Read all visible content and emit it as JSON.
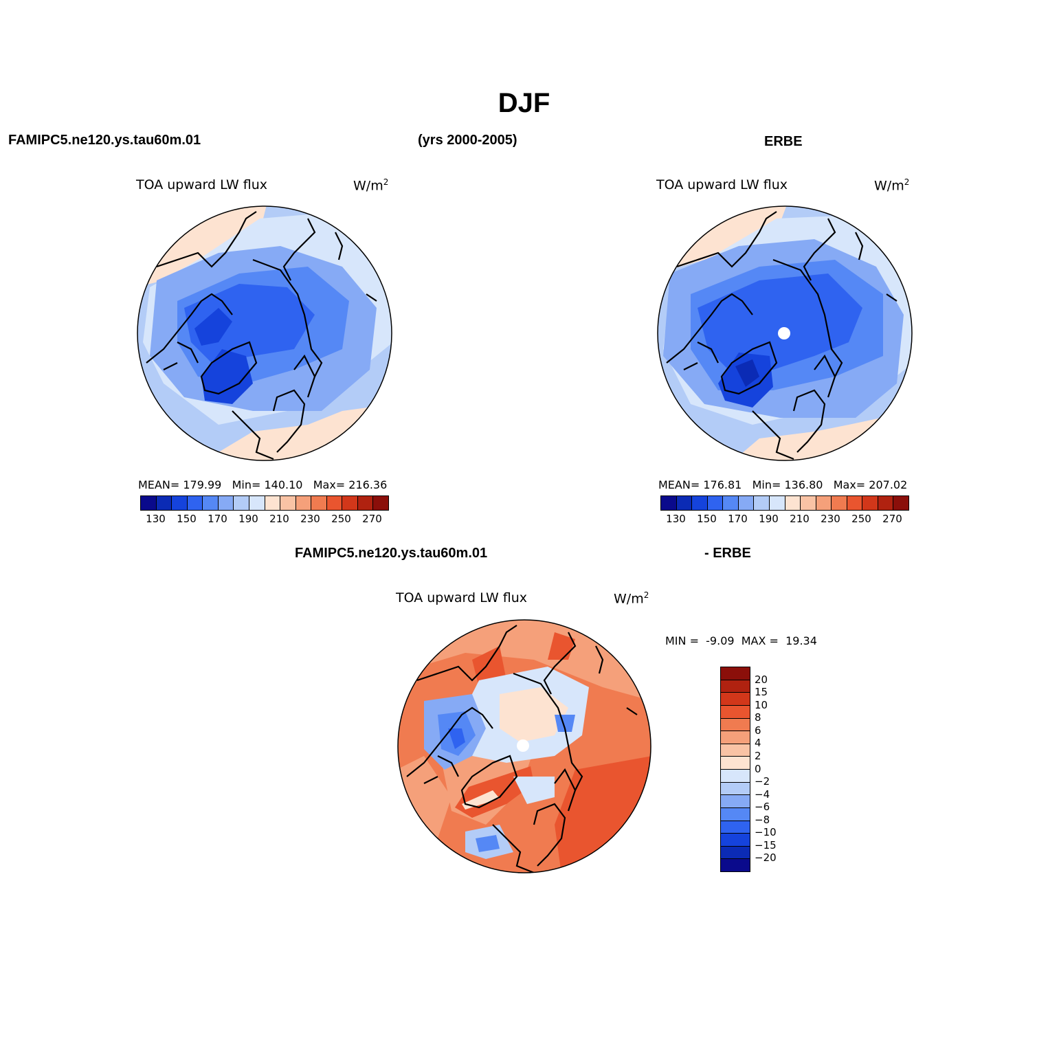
{
  "figure": {
    "season": "DJF",
    "model_name": "FAMIPC5.ne120.ys.tau60m.01",
    "years": "(yrs 2000-2005)",
    "obs_name": "ERBE",
    "diff_left": "FAMIPC5.ne120.ys.tau60m.01",
    "diff_right": "- ERBE"
  },
  "panels": {
    "model": {
      "variable": "TOA upward LW flux",
      "units": "W/m",
      "units_sup": "2",
      "mean_label": "MEAN=",
      "mean": "179.99",
      "min_label": "Min=",
      "min": "140.10",
      "max_label": "Max=",
      "max": "216.36"
    },
    "obs": {
      "variable": "TOA upward LW flux",
      "units": "W/m",
      "units_sup": "2",
      "mean_label": "MEAN=",
      "mean": "176.81",
      "min_label": "Min=",
      "min": "136.80",
      "max_label": "Max=",
      "max": "207.02"
    },
    "diff": {
      "variable": "TOA upward LW flux",
      "units": "W/m",
      "units_sup": "2",
      "min_label": "MIN =",
      "min": "-9.09",
      "max_label": "MAX =",
      "max": "19.34"
    }
  },
  "colorbars": {
    "abs_colors": [
      "#0a0a8c",
      "#0b2bb5",
      "#1543dc",
      "#2f63f0",
      "#5588f5",
      "#86aaf5",
      "#b3ccf7",
      "#d7e6fb",
      "#fde3d1",
      "#f9c3a5",
      "#f5a07a",
      "#f07b50",
      "#e9552f",
      "#d2371a",
      "#b02210",
      "#8b0f0a"
    ],
    "abs_ticks": [
      "130",
      "150",
      "170",
      "190",
      "210",
      "230",
      "250",
      "270"
    ],
    "diff_colors": [
      "#8b0f0a",
      "#b02210",
      "#d2371a",
      "#e9552f",
      "#f07b50",
      "#f5a07a",
      "#f9c3a5",
      "#fde3d1",
      "#d7e6fb",
      "#b3ccf7",
      "#86aaf5",
      "#5588f5",
      "#2f63f0",
      "#1543dc",
      "#0b2bb5",
      "#0a0a8c"
    ],
    "diff_ticks": [
      "20",
      "15",
      "10",
      "8",
      "6",
      "4",
      "2",
      "0",
      "−2",
      "−4",
      "−6",
      "−8",
      "−10",
      "−15",
      "−20"
    ]
  },
  "chart_data": {
    "type": "heatmap",
    "title": "DJF",
    "projection": "north polar stereographic",
    "panels": [
      {
        "name": "FAMIPC5.ne120.ys.tau60m.01",
        "variable": "TOA upward LW flux",
        "units": "W/m2",
        "mean": 179.99,
        "min": 140.1,
        "max": 216.36,
        "contour_levels": [
          130,
          140,
          150,
          160,
          170,
          180,
          190,
          200,
          210,
          220,
          230,
          240,
          250,
          260,
          270
        ]
      },
      {
        "name": "ERBE",
        "variable": "TOA upward LW flux",
        "units": "W/m2",
        "mean": 176.81,
        "min": 136.8,
        "max": 207.02,
        "contour_levels": [
          130,
          140,
          150,
          160,
          170,
          180,
          190,
          200,
          210,
          220,
          230,
          240,
          250,
          260,
          270
        ]
      },
      {
        "name": "FAMIPC5.ne120.ys.tau60m.01 - ERBE",
        "variable": "TOA upward LW flux",
        "units": "W/m2",
        "min": -9.09,
        "max": 19.34,
        "contour_levels": [
          -20,
          -15,
          -10,
          -8,
          -6,
          -4,
          -2,
          0,
          2,
          4,
          6,
          8,
          10,
          15,
          20
        ]
      }
    ]
  }
}
